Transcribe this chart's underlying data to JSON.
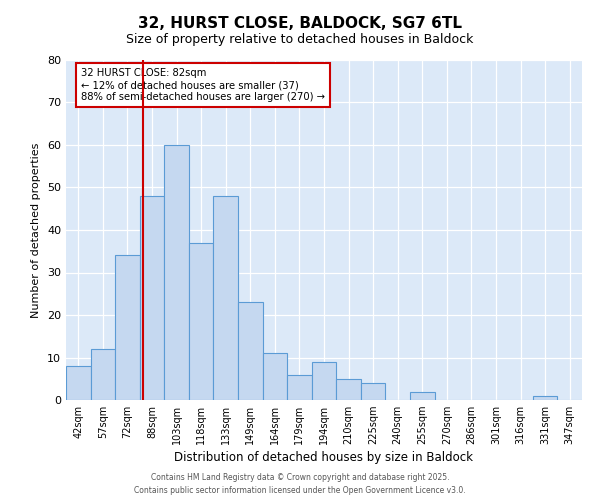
{
  "title": "32, HURST CLOSE, BALDOCK, SG7 6TL",
  "subtitle": "Size of property relative to detached houses in Baldock",
  "xlabel": "Distribution of detached houses by size in Baldock",
  "ylabel": "Number of detached properties",
  "categories": [
    "42sqm",
    "57sqm",
    "72sqm",
    "88sqm",
    "103sqm",
    "118sqm",
    "133sqm",
    "149sqm",
    "164sqm",
    "179sqm",
    "194sqm",
    "210sqm",
    "225sqm",
    "240sqm",
    "255sqm",
    "270sqm",
    "286sqm",
    "301sqm",
    "316sqm",
    "331sqm",
    "347sqm"
  ],
  "values": [
    8,
    12,
    34,
    48,
    60,
    37,
    48,
    23,
    11,
    6,
    9,
    5,
    4,
    0,
    2,
    0,
    0,
    0,
    0,
    1,
    0
  ],
  "bar_color": "#c5d8f0",
  "bar_edge_color": "#5b9bd5",
  "vline_color": "#cc0000",
  "annotation_title": "32 HURST CLOSE: 82sqm",
  "annotation_line1": "← 12% of detached houses are smaller (37)",
  "annotation_line2": "88% of semi-detached houses are larger (270) →",
  "annotation_box_edge_color": "#cc0000",
  "ylim": [
    0,
    80
  ],
  "yticks": [
    0,
    10,
    20,
    30,
    40,
    50,
    60,
    70,
    80
  ],
  "bg_color": "#dce9f8",
  "footer1": "Contains HM Land Registry data © Crown copyright and database right 2025.",
  "footer2": "Contains public sector information licensed under the Open Government Licence v3.0."
}
